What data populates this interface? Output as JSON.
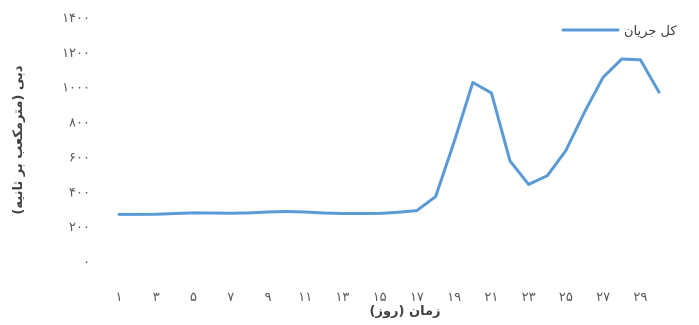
{
  "chart_data": {
    "type": "line",
    "xlabel": "زمان (روز)",
    "ylabel": "دبی (مترمکعب بر ثانیه)",
    "x": [
      1,
      2,
      3,
      4,
      5,
      6,
      7,
      8,
      9,
      10,
      11,
      12,
      13,
      14,
      15,
      16,
      17,
      18,
      19,
      20,
      21,
      22,
      23,
      24,
      25,
      26,
      27,
      28,
      29,
      30
    ],
    "x_tick_values": [
      1,
      3,
      5,
      7,
      9,
      11,
      13,
      15,
      17,
      19,
      21,
      23,
      25,
      27,
      29
    ],
    "x_tick_labels": [
      "۱",
      "۳",
      "۵",
      "۷",
      "۹",
      "۱۱",
      "۱۳",
      "۱۵",
      "۱۷",
      "۱۹",
      "۲۱",
      "۲۳",
      "۲۵",
      "۲۷",
      "۲۹"
    ],
    "ylim": [
      0,
      1400
    ],
    "y_tick_values": [
      0,
      200,
      400,
      600,
      800,
      1000,
      1200,
      1400
    ],
    "y_tick_labels": [
      "۰",
      "۲۰۰",
      "۴۰۰",
      "۶۰۰",
      "۸۰۰",
      "۱۰۰۰",
      "۱۲۰۰",
      "۱۴۰۰"
    ],
    "grid": false,
    "legend_position": "top-right",
    "series": [
      {
        "name": "کل جریان",
        "color": "#5B9BD5",
        "values": [
          273,
          273,
          274,
          278,
          282,
          281,
          280,
          282,
          287,
          290,
          287,
          281,
          278,
          278,
          279,
          285,
          295,
          375,
          690,
          1030,
          970,
          580,
          445,
          495,
          640,
          860,
          1060,
          1165,
          1160,
          975
        ]
      }
    ]
  }
}
